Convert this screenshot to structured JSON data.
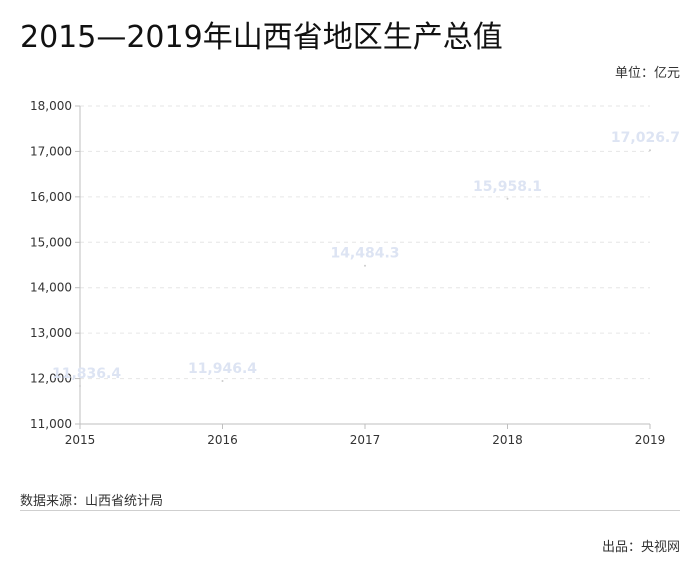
{
  "header": {
    "title": "2015—2019年山西省地区生产总值",
    "unit": "单位：亿元"
  },
  "footer": {
    "source": "数据来源：山西省统计局",
    "credit": "出品：央视网"
  },
  "colors": {
    "axis": "#bfbfbf",
    "grid": "#e6e6e6",
    "label": "#dde4f3",
    "tick_text": "#333333"
  },
  "chart_data": {
    "type": "line",
    "title": "2015—2019年山西省地区生产总值",
    "unit": "单位：亿元",
    "x": [
      "2015",
      "2016",
      "2017",
      "2018",
      "2019"
    ],
    "series": [
      {
        "values": [
          11836.4,
          11946.4,
          14484.3,
          15958.1,
          17026.7
        ]
      }
    ],
    "data_labels": [
      "11,836.4",
      "11,946.4",
      "14,484.3",
      "15,958.1",
      "17,026.7"
    ],
    "y_ticks": [
      "11,000",
      "12,000",
      "13,000",
      "14,000",
      "15,000",
      "16,000",
      "17,000",
      "18,000"
    ],
    "ylim": [
      11000,
      18000
    ],
    "grid": true,
    "legend": "none"
  }
}
